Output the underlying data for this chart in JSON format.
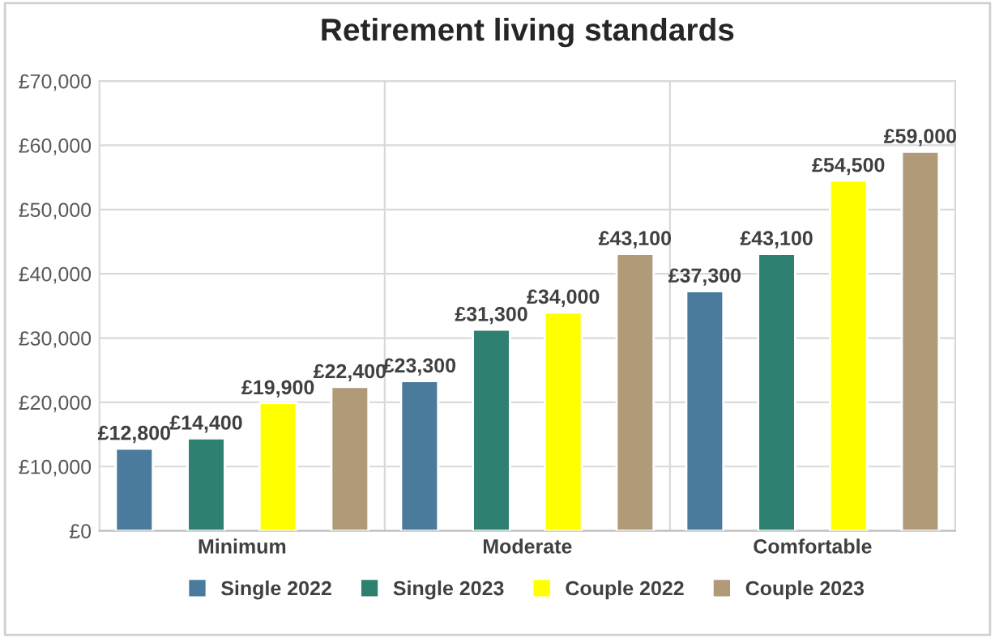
{
  "chart_data": {
    "type": "bar",
    "title": "Retirement living standards",
    "categories": [
      "Minimum",
      "Moderate",
      "Comfortable"
    ],
    "series": [
      {
        "name": "Single 2022",
        "color": "#4a7a9c",
        "values": [
          12800,
          23300,
          37300
        ],
        "value_labels": [
          "£12,800",
          "£23,300",
          "£37,300"
        ]
      },
      {
        "name": "Single 2023",
        "color": "#2e8070",
        "values": [
          14400,
          31300,
          43100
        ],
        "value_labels": [
          "£14,400",
          "£31,300",
          "£43,100"
        ]
      },
      {
        "name": "Couple 2022",
        "color": "#ffff00",
        "values": [
          19900,
          34000,
          54500
        ],
        "value_labels": [
          "£19,900",
          "£34,000",
          "£54,500"
        ]
      },
      {
        "name": "Couple 2023",
        "color": "#b09a78",
        "values": [
          22400,
          43100,
          59000
        ],
        "value_labels": [
          "£22,400",
          "£43,100",
          "£59,000"
        ]
      }
    ],
    "ylim": [
      0,
      70000
    ],
    "yticks": [
      {
        "value": 0,
        "label": "£0"
      },
      {
        "value": 10000,
        "label": "£10,000"
      },
      {
        "value": 20000,
        "label": "£20,000"
      },
      {
        "value": 30000,
        "label": "£30,000"
      },
      {
        "value": 40000,
        "label": "£40,000"
      },
      {
        "value": 50000,
        "label": "£50,000"
      },
      {
        "value": 60000,
        "label": "£60,000"
      },
      {
        "value": 70000,
        "label": "£70,000"
      }
    ],
    "grid": true,
    "legend": "bottom"
  }
}
